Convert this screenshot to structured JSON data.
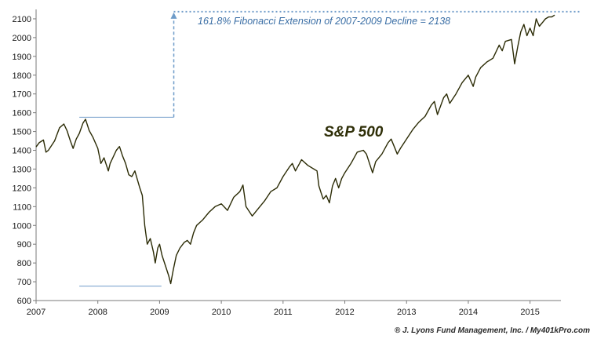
{
  "chart_data": {
    "type": "line",
    "title": "",
    "xlabel": "",
    "ylabel": "",
    "xlim": [
      2007.0,
      2015.5
    ],
    "ylim": [
      600,
      2150
    ],
    "yticks": [
      600,
      700,
      800,
      900,
      1000,
      1100,
      1200,
      1300,
      1400,
      1500,
      1600,
      1700,
      1800,
      1900,
      2000,
      2100
    ],
    "xticks": [
      2007,
      2008,
      2009,
      2010,
      2011,
      2012,
      2013,
      2014,
      2015
    ],
    "xtick_labels": [
      "2007",
      "2008",
      "2009",
      "2010",
      "2011",
      "2012",
      "2013",
      "2014",
      "2015"
    ],
    "grid": false,
    "series": [
      {
        "name": "S&P 500",
        "color": "#2b2b05",
        "x": [
          2007.0,
          2007.05,
          2007.12,
          2007.16,
          2007.2,
          2007.3,
          2007.38,
          2007.45,
          2007.5,
          2007.55,
          2007.6,
          2007.65,
          2007.7,
          2007.76,
          2007.8,
          2007.86,
          2007.92,
          2008.0,
          2008.05,
          2008.1,
          2008.17,
          2008.2,
          2008.3,
          2008.35,
          2008.4,
          2008.45,
          2008.5,
          2008.55,
          2008.6,
          2008.68,
          2008.72,
          2008.76,
          2008.8,
          2008.85,
          2008.9,
          2008.93,
          2008.97,
          2009.0,
          2009.04,
          2009.1,
          2009.15,
          2009.18,
          2009.22,
          2009.27,
          2009.33,
          2009.4,
          2009.45,
          2009.5,
          2009.55,
          2009.6,
          2009.7,
          2009.8,
          2009.9,
          2010.0,
          2010.1,
          2010.2,
          2010.3,
          2010.35,
          2010.4,
          2010.5,
          2010.6,
          2010.7,
          2010.8,
          2010.9,
          2011.0,
          2011.1,
          2011.15,
          2011.2,
          2011.25,
          2011.3,
          2011.4,
          2011.5,
          2011.55,
          2011.58,
          2011.62,
          2011.65,
          2011.7,
          2011.75,
          2011.8,
          2011.85,
          2011.9,
          2011.95,
          2012.0,
          2012.1,
          2012.2,
          2012.3,
          2012.35,
          2012.4,
          2012.45,
          2012.5,
          2012.6,
          2012.7,
          2012.75,
          2012.8,
          2012.85,
          2012.9,
          2013.0,
          2013.1,
          2013.2,
          2013.3,
          2013.4,
          2013.45,
          2013.5,
          2013.6,
          2013.65,
          2013.7,
          2013.8,
          2013.9,
          2014.0,
          2014.08,
          2014.12,
          2014.2,
          2014.3,
          2014.4,
          2014.5,
          2014.55,
          2014.6,
          2014.7,
          2014.75,
          2014.8,
          2014.85,
          2014.9,
          2014.95,
          2015.0,
          2015.05,
          2015.1,
          2015.15,
          2015.2,
          2015.25,
          2015.3,
          2015.35,
          2015.4
        ],
        "y": [
          1418,
          1440,
          1455,
          1390,
          1400,
          1450,
          1520,
          1540,
          1505,
          1455,
          1410,
          1460,
          1490,
          1545,
          1565,
          1505,
          1470,
          1410,
          1330,
          1360,
          1290,
          1330,
          1400,
          1420,
          1370,
          1330,
          1270,
          1260,
          1290,
          1200,
          1160,
          1000,
          900,
          930,
          860,
          800,
          880,
          900,
          840,
          780,
          730,
          690,
          760,
          840,
          880,
          910,
          920,
          900,
          960,
          1000,
          1030,
          1070,
          1100,
          1115,
          1080,
          1150,
          1180,
          1215,
          1100,
          1050,
          1090,
          1130,
          1180,
          1200,
          1260,
          1310,
          1330,
          1290,
          1320,
          1350,
          1320,
          1300,
          1290,
          1210,
          1170,
          1140,
          1160,
          1120,
          1210,
          1250,
          1200,
          1250,
          1280,
          1330,
          1390,
          1400,
          1380,
          1330,
          1280,
          1340,
          1380,
          1440,
          1460,
          1420,
          1380,
          1410,
          1460,
          1510,
          1550,
          1580,
          1640,
          1660,
          1590,
          1680,
          1700,
          1650,
          1700,
          1760,
          1800,
          1740,
          1790,
          1840,
          1870,
          1890,
          1960,
          1930,
          1980,
          1990,
          1860,
          1950,
          2030,
          2070,
          2010,
          2050,
          2010,
          2100,
          2060,
          2080,
          2100,
          2110,
          2110,
          2120
        ]
      }
    ],
    "annotations": {
      "series_label": "S&P 500",
      "fib_text": "161.8% Fibonacci Extension of 2007-2009 Decline = 2138",
      "fib_level": 2138,
      "peak_2007": 1576,
      "low_2009": 677,
      "credit": "® J. Lyons Fund Management, Inc. / My401kPro.com"
    },
    "colors": {
      "line": "#2b2b05",
      "reference": "#6f9cc9",
      "annotation": "#3a6ea5",
      "axis": "#7a7a7a"
    }
  }
}
